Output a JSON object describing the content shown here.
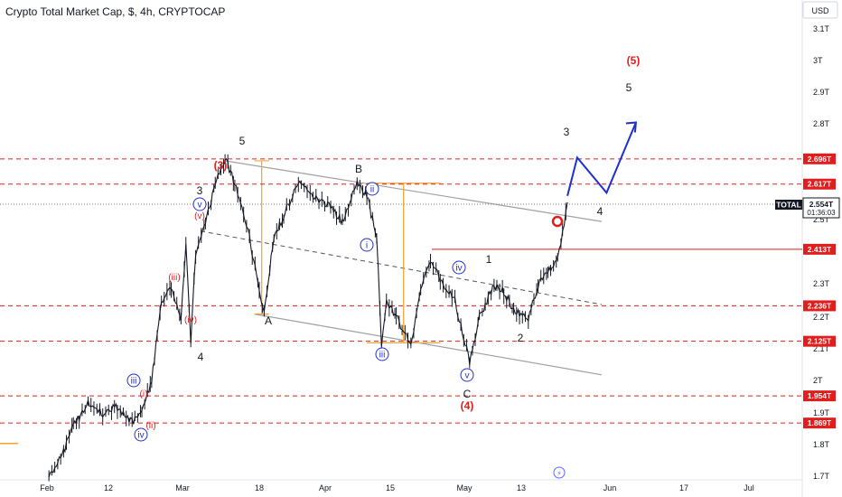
{
  "header": {
    "title": "Crypto Total Market Cap, $, 4h, CRYPTOCAP"
  },
  "price_scale": {
    "currency": "USD",
    "ticks": [
      "3.1T",
      "3T",
      "2.9T",
      "2.8T",
      "2.5T",
      "2.3T",
      "2.2T",
      "2.1T",
      "2T",
      "1.9T",
      "1.8T",
      "1.7T"
    ]
  },
  "time_axis": {
    "ticks": [
      "Feb",
      "12",
      "Mar",
      "18",
      "Apr",
      "15",
      "May",
      "13",
      "Jun",
      "17",
      "Jul"
    ]
  },
  "levels": [
    {
      "value": "2.696T"
    },
    {
      "value": "2.617T"
    },
    {
      "value": "2.413T"
    },
    {
      "value": "2.236T"
    },
    {
      "value": "2.125T"
    },
    {
      "value": "1.954T"
    },
    {
      "value": "1.869T"
    }
  ],
  "current_price": {
    "label": "TOTAL",
    "value": "2.554T",
    "countdown": "01:36:03"
  },
  "wave_labels": {
    "black": [
      "3",
      "4",
      "5",
      "A",
      "B",
      "C",
      "1",
      "2",
      "3",
      "4",
      "5"
    ],
    "red": [
      "(3)",
      "(4)",
      "(5)"
    ],
    "red_small": [
      "(i)",
      "(ii)",
      "(iii)",
      "(iv)",
      "(v)"
    ],
    "blue_circled": [
      "i",
      "ii",
      "iii",
      "iv",
      "v",
      "iii",
      "iv",
      "v"
    ]
  },
  "colors": {
    "level_line": "#e01e1e",
    "projection": "#1f2fd1",
    "fib_box": "#f7a128",
    "channel": "#a0a0a0",
    "candle": "#131722"
  },
  "chart_data": {
    "type": "candlestick",
    "title": "Crypto Total Market Cap, $, 4h, CRYPTOCAP",
    "x_unit": "date",
    "y_unit": "USD",
    "ylim": [
      1.68,
      3.14
    ],
    "xlim": [
      "2024-01-26",
      "2024-07-08"
    ],
    "x_ticks": [
      "Feb",
      "12",
      "Mar",
      "18",
      "Apr",
      "15",
      "May",
      "13",
      "Jun",
      "17",
      "Jul"
    ],
    "y_ticks": [
      3.1,
      3.0,
      2.9,
      2.8,
      2.5,
      2.3,
      2.2,
      2.1,
      2.0,
      1.9,
      1.8,
      1.7
    ],
    "price_path": [
      [
        "2024-02-05",
        1.7
      ],
      [
        "2024-02-08",
        1.78
      ],
      [
        "2024-02-10",
        1.86
      ],
      [
        "2024-02-13",
        1.93
      ],
      [
        "2024-02-16",
        1.9
      ],
      [
        "2024-02-19",
        1.92
      ],
      [
        "2024-02-22",
        1.87
      ],
      [
        "2024-02-24",
        1.9
      ],
      [
        "2024-02-26",
        2.0
      ],
      [
        "2024-02-28",
        2.25
      ],
      [
        "2024-03-01",
        2.3
      ],
      [
        "2024-03-03",
        2.2
      ],
      [
        "2024-03-04",
        2.42
      ],
      [
        "2024-03-05",
        2.13
      ],
      [
        "2024-03-06",
        2.4
      ],
      [
        "2024-03-08",
        2.49
      ],
      [
        "2024-03-10",
        2.62
      ],
      [
        "2024-03-12",
        2.7
      ],
      [
        "2024-03-14",
        2.62
      ],
      [
        "2024-03-17",
        2.45
      ],
      [
        "2024-03-19",
        2.28
      ],
      [
        "2024-03-20",
        2.21
      ],
      [
        "2024-03-22",
        2.45
      ],
      [
        "2024-03-24",
        2.52
      ],
      [
        "2024-03-27",
        2.62
      ],
      [
        "2024-03-30",
        2.58
      ],
      [
        "2024-04-02",
        2.55
      ],
      [
        "2024-04-05",
        2.5
      ],
      [
        "2024-04-08",
        2.62
      ],
      [
        "2024-04-10",
        2.58
      ],
      [
        "2024-04-12",
        2.45
      ],
      [
        "2024-04-13",
        2.12
      ],
      [
        "2024-04-14",
        2.25
      ],
      [
        "2024-04-16",
        2.2
      ],
      [
        "2024-04-19",
        2.12
      ],
      [
        "2024-04-21",
        2.28
      ],
      [
        "2024-04-23",
        2.38
      ],
      [
        "2024-04-25",
        2.32
      ],
      [
        "2024-04-28",
        2.25
      ],
      [
        "2024-05-01",
        2.06
      ],
      [
        "2024-05-03",
        2.2
      ],
      [
        "2024-05-06",
        2.3
      ],
      [
        "2024-05-08",
        2.28
      ],
      [
        "2024-05-10",
        2.22
      ],
      [
        "2024-05-13",
        2.2
      ],
      [
        "2024-05-15",
        2.3
      ],
      [
        "2024-05-17",
        2.34
      ],
      [
        "2024-05-19",
        2.38
      ],
      [
        "2024-05-20",
        2.47
      ],
      [
        "2024-05-21",
        2.56
      ]
    ],
    "levels": [
      2.696,
      2.617,
      2.413,
      2.236,
      2.125,
      1.954,
      1.869
    ],
    "current_price": 2.554,
    "projection_path": [
      [
        "2024-05-21",
        2.58
      ],
      [
        "2024-05-23",
        2.7
      ],
      [
        "2024-05-29",
        2.59
      ],
      [
        "2024-06-04",
        2.81
      ]
    ],
    "channel": [
      {
        "from": [
          "2024-03-12",
          2.69
        ],
        "to": [
          "2024-05-28",
          2.5
        ]
      },
      {
        "from": [
          "2024-03-18",
          2.21
        ],
        "to": [
          "2024-05-28",
          2.02
        ]
      }
    ],
    "mid_channel": {
      "from": [
        "2024-03-07",
        2.47
      ],
      "to": [
        "2024-05-28",
        2.24
      ]
    },
    "fib_boxes": [
      {
        "from": [
          "2024-03-18",
          2.69
        ],
        "to": [
          "2024-03-21",
          2.21
        ]
      },
      {
        "from": [
          "2024-04-10",
          2.62
        ],
        "to": [
          "2024-04-25",
          2.12
        ]
      }
    ]
  }
}
